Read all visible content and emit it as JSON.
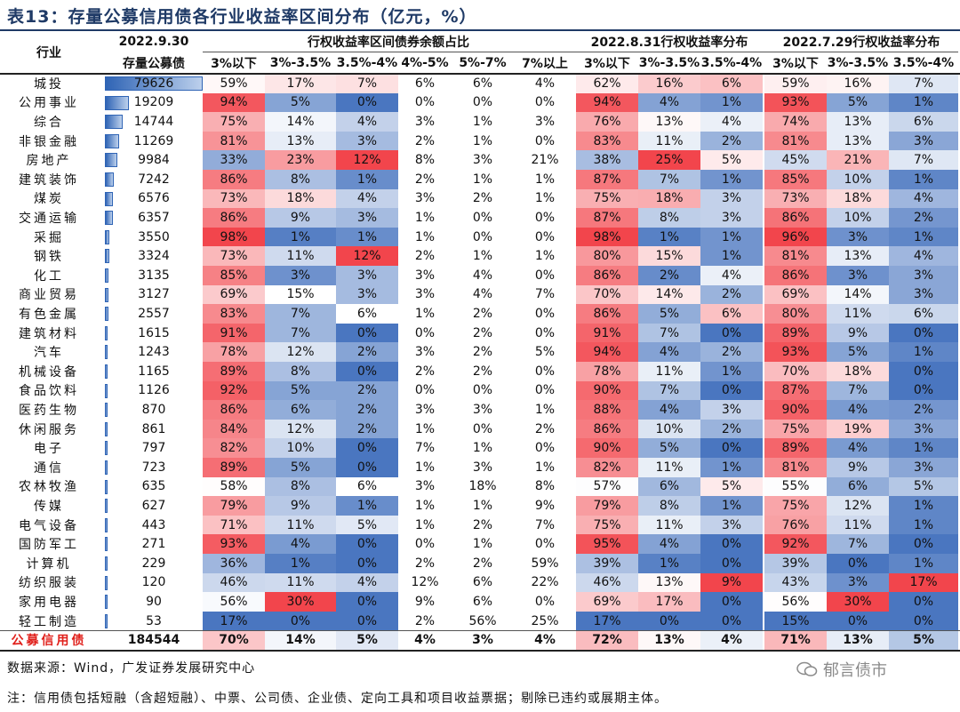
{
  "title": "表13：存量公募信用债各行业收益率区间分布（亿元，%）",
  "headers": {
    "industry": "行业",
    "stock_date": "2022.9.30",
    "stock_label": "存量公募债",
    "group1": "行权收益率区间债券余额占比",
    "group2": "2022.8.31行权收益率分布",
    "group3": "2022.7.29行权收益率分布",
    "ranges1": [
      "3%以下",
      "3%-3.5%",
      "3.5%-4%",
      "4%-5%",
      "5%-7%",
      "7%以上"
    ],
    "ranges2": [
      "3%以下",
      "3%-3.5%",
      "3.5%-4%"
    ],
    "ranges3": [
      "3%以下",
      "3%-3.5%",
      "3.5%-4%"
    ]
  },
  "rows": [
    [
      "城投",
      "79626",
      "59%",
      "17%",
      "7%",
      "6%",
      "6%",
      "4%",
      "62%",
      "16%",
      "6%",
      "59%",
      "16%",
      "7%"
    ],
    [
      "公用事业",
      "19209",
      "94%",
      "5%",
      "0%",
      "0%",
      "0%",
      "0%",
      "94%",
      "4%",
      "1%",
      "93%",
      "5%",
      "1%"
    ],
    [
      "综合",
      "14744",
      "75%",
      "14%",
      "4%",
      "3%",
      "1%",
      "3%",
      "76%",
      "13%",
      "4%",
      "74%",
      "13%",
      "6%"
    ],
    [
      "非银金融",
      "11269",
      "81%",
      "13%",
      "3%",
      "2%",
      "1%",
      "0%",
      "83%",
      "11%",
      "2%",
      "81%",
      "13%",
      "3%"
    ],
    [
      "房地产",
      "9984",
      "33%",
      "23%",
      "12%",
      "8%",
      "3%",
      "21%",
      "38%",
      "25%",
      "5%",
      "45%",
      "21%",
      "7%"
    ],
    [
      "建筑装饰",
      "7242",
      "86%",
      "8%",
      "1%",
      "2%",
      "1%",
      "1%",
      "87%",
      "7%",
      "1%",
      "85%",
      "10%",
      "1%"
    ],
    [
      "煤炭",
      "6576",
      "73%",
      "18%",
      "4%",
      "3%",
      "2%",
      "1%",
      "75%",
      "18%",
      "3%",
      "73%",
      "18%",
      "4%"
    ],
    [
      "交通运输",
      "6357",
      "86%",
      "9%",
      "3%",
      "1%",
      "0%",
      "0%",
      "87%",
      "8%",
      "3%",
      "86%",
      "10%",
      "2%"
    ],
    [
      "采掘",
      "3550",
      "98%",
      "1%",
      "1%",
      "1%",
      "0%",
      "0%",
      "98%",
      "1%",
      "1%",
      "96%",
      "3%",
      "1%"
    ],
    [
      "钢铁",
      "3324",
      "73%",
      "11%",
      "12%",
      "2%",
      "1%",
      "1%",
      "80%",
      "15%",
      "1%",
      "81%",
      "13%",
      "4%"
    ],
    [
      "化工",
      "3135",
      "85%",
      "3%",
      "3%",
      "3%",
      "4%",
      "0%",
      "86%",
      "2%",
      "4%",
      "86%",
      "3%",
      "3%"
    ],
    [
      "商业贸易",
      "3127",
      "69%",
      "15%",
      "3%",
      "3%",
      "4%",
      "7%",
      "70%",
      "14%",
      "2%",
      "69%",
      "14%",
      "3%"
    ],
    [
      "有色金属",
      "2557",
      "83%",
      "7%",
      "6%",
      "1%",
      "2%",
      "0%",
      "86%",
      "5%",
      "6%",
      "80%",
      "11%",
      "6%"
    ],
    [
      "建筑材料",
      "1615",
      "91%",
      "7%",
      "0%",
      "0%",
      "2%",
      "0%",
      "91%",
      "7%",
      "0%",
      "89%",
      "9%",
      "0%"
    ],
    [
      "汽车",
      "1243",
      "78%",
      "12%",
      "2%",
      "3%",
      "2%",
      "5%",
      "94%",
      "4%",
      "2%",
      "93%",
      "5%",
      "1%"
    ],
    [
      "机械设备",
      "1165",
      "89%",
      "8%",
      "0%",
      "2%",
      "2%",
      "0%",
      "78%",
      "11%",
      "1%",
      "70%",
      "18%",
      "0%"
    ],
    [
      "食品饮料",
      "1126",
      "92%",
      "5%",
      "2%",
      "0%",
      "0%",
      "0%",
      "90%",
      "7%",
      "0%",
      "87%",
      "7%",
      "0%"
    ],
    [
      "医药生物",
      "870",
      "86%",
      "6%",
      "2%",
      "3%",
      "3%",
      "1%",
      "88%",
      "4%",
      "3%",
      "90%",
      "4%",
      "2%"
    ],
    [
      "休闲服务",
      "861",
      "84%",
      "12%",
      "2%",
      "1%",
      "0%",
      "2%",
      "86%",
      "10%",
      "2%",
      "75%",
      "19%",
      "3%"
    ],
    [
      "电子",
      "797",
      "82%",
      "10%",
      "0%",
      "7%",
      "1%",
      "0%",
      "90%",
      "5%",
      "0%",
      "89%",
      "4%",
      "1%"
    ],
    [
      "通信",
      "723",
      "89%",
      "5%",
      "0%",
      "1%",
      "3%",
      "1%",
      "82%",
      "11%",
      "1%",
      "81%",
      "9%",
      "3%"
    ],
    [
      "农林牧渔",
      "635",
      "58%",
      "8%",
      "6%",
      "3%",
      "18%",
      "8%",
      "57%",
      "6%",
      "5%",
      "55%",
      "6%",
      "5%"
    ],
    [
      "传媒",
      "627",
      "79%",
      "9%",
      "1%",
      "1%",
      "1%",
      "9%",
      "79%",
      "8%",
      "1%",
      "75%",
      "12%",
      "1%"
    ],
    [
      "电气设备",
      "443",
      "71%",
      "11%",
      "5%",
      "1%",
      "2%",
      "7%",
      "75%",
      "11%",
      "3%",
      "76%",
      "11%",
      "1%"
    ],
    [
      "国防军工",
      "271",
      "93%",
      "4%",
      "0%",
      "0%",
      "1%",
      "0%",
      "95%",
      "4%",
      "0%",
      "92%",
      "7%",
      "0%"
    ],
    [
      "计算机",
      "229",
      "36%",
      "1%",
      "0%",
      "2%",
      "2%",
      "59%",
      "39%",
      "1%",
      "0%",
      "39%",
      "0%",
      "1%"
    ],
    [
      "纺织服装",
      "120",
      "46%",
      "11%",
      "4%",
      "12%",
      "6%",
      "22%",
      "46%",
      "13%",
      "9%",
      "43%",
      "3%",
      "17%"
    ],
    [
      "家用电器",
      "90",
      "56%",
      "30%",
      "0%",
      "9%",
      "6%",
      "0%",
      "69%",
      "17%",
      "0%",
      "56%",
      "30%",
      "0%"
    ],
    [
      "轻工制造",
      "53",
      "17%",
      "0%",
      "0%",
      "2%",
      "56%",
      "25%",
      "17%",
      "0%",
      "0%",
      "15%",
      "0%",
      "0%"
    ],
    [
      "公募信用债",
      "184544",
      "70%",
      "14%",
      "5%",
      "4%",
      "3%",
      "4%",
      "72%",
      "13%",
      "4%",
      "71%",
      "13%",
      "5%"
    ]
  ],
  "source": "数据来源：Wind，广发证券发展研究中心",
  "note": "注：信用债包括短融（含超短融）、中票、公司债、企业债、定向工具和项目收益票据；剔除已违约或展期主体。",
  "watermark": "郁言债市",
  "colors": {
    "high": "#f2454c",
    "low": "#4a76c0",
    "mid": "#ffffff",
    "bar": "#2f64b5",
    "title": "#1f3a66",
    "total_label": "#e0201b"
  }
}
